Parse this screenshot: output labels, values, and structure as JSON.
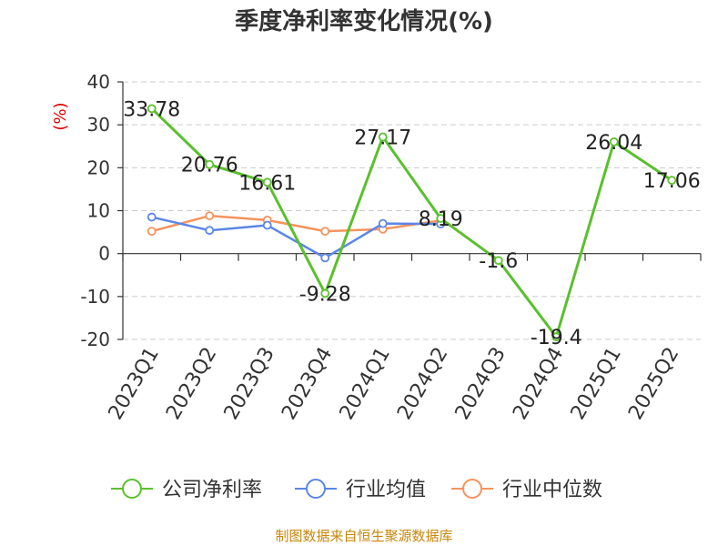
{
  "chart_data": {
    "type": "line",
    "title": "季度净利率变化情况(%)",
    "ylabel": "(%)",
    "xlabel": "",
    "ylim": [
      -20,
      40
    ],
    "yticks": [
      40,
      30,
      20,
      10,
      0,
      -10,
      -20
    ],
    "grid": true,
    "legend_position": "bottom",
    "categories": [
      "2023Q1",
      "2023Q2",
      "2023Q3",
      "2023Q4",
      "2024Q1",
      "2024Q2",
      "2024Q3",
      "2024Q4",
      "2025Q1",
      "2025Q2"
    ],
    "series": [
      {
        "name": "公司净利率",
        "color": "#5ac02e",
        "values": [
          33.78,
          20.76,
          16.61,
          -9.28,
          27.17,
          8.19,
          -1.6,
          -19.4,
          26.04,
          17.06
        ],
        "labels": [
          "33.78",
          "20.76",
          "16.61",
          "-9.28",
          "27.17",
          "8.19",
          "-1.6",
          "-19.4",
          "26.04",
          "17.06"
        ]
      },
      {
        "name": "行业均值",
        "color": "#5b86e5",
        "values": [
          8.5,
          5.4,
          6.6,
          -1.0,
          7.0,
          6.9,
          null,
          null,
          null,
          null
        ]
      },
      {
        "name": "行业中位数",
        "color": "#f4935d",
        "values": [
          5.2,
          8.8,
          7.8,
          5.2,
          5.7,
          7.7,
          null,
          null,
          null,
          null
        ]
      }
    ],
    "source": "制图数据来自恒生聚源数据库"
  }
}
